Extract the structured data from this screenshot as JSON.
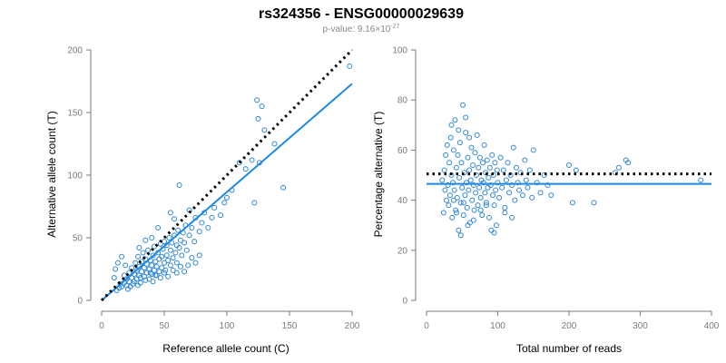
{
  "title": "rs324356 - ENSG00000029639",
  "subtitle": {
    "prefix": "p-value: 9.16×10",
    "exponent": "-27"
  },
  "colors": {
    "points": "#2f86d6",
    "fit_line": "#1e88e5",
    "reference_line": "#000000",
    "axes": "#7a7a7a"
  },
  "chart_data": [
    {
      "type": "scatter",
      "xlabel": "Reference allele count (C)",
      "ylabel": "Alternative allele count (T)",
      "xlim": [
        0,
        200
      ],
      "ylim": [
        0,
        200
      ],
      "xticks": [
        0,
        50,
        100,
        150,
        200
      ],
      "yticks": [
        0,
        50,
        100,
        150,
        200
      ],
      "grid": false,
      "reference_line": {
        "style": "dotted",
        "color": "#000000",
        "points": [
          [
            0,
            0
          ],
          [
            200,
            200
          ]
        ]
      },
      "fit_line": {
        "style": "solid",
        "color": "#1e88e5",
        "points": [
          [
            0,
            0
          ],
          [
            200,
            173
          ]
        ]
      },
      "points": [
        [
          12,
          8
        ],
        [
          14,
          10
        ],
        [
          15,
          13
        ],
        [
          16,
          11
        ],
        [
          18,
          14
        ],
        [
          18,
          20
        ],
        [
          20,
          12
        ],
        [
          20,
          17
        ],
        [
          22,
          15
        ],
        [
          22,
          22
        ],
        [
          24,
          18
        ],
        [
          24,
          26
        ],
        [
          25,
          13
        ],
        [
          26,
          21
        ],
        [
          27,
          30
        ],
        [
          28,
          17
        ],
        [
          28,
          24
        ],
        [
          29,
          35
        ],
        [
          30,
          20
        ],
        [
          30,
          27
        ],
        [
          31,
          14
        ],
        [
          32,
          23
        ],
        [
          32,
          31
        ],
        [
          33,
          38
        ],
        [
          34,
          19
        ],
        [
          34,
          26
        ],
        [
          35,
          33
        ],
        [
          36,
          22
        ],
        [
          36,
          29
        ],
        [
          37,
          40
        ],
        [
          38,
          17
        ],
        [
          38,
          25
        ],
        [
          39,
          32
        ],
        [
          40,
          21
        ],
        [
          40,
          28
        ],
        [
          41,
          36
        ],
        [
          42,
          24
        ],
        [
          42,
          43
        ],
        [
          43,
          31
        ],
        [
          44,
          20
        ],
        [
          44,
          27
        ],
        [
          45,
          38
        ],
        [
          46,
          23
        ],
        [
          46,
          33
        ],
        [
          47,
          45
        ],
        [
          48,
          26
        ],
        [
          48,
          35
        ],
        [
          49,
          41
        ],
        [
          50,
          30
        ],
        [
          50,
          47
        ],
        [
          51,
          24
        ],
        [
          52,
          36
        ],
        [
          52,
          44
        ],
        [
          53,
          32
        ],
        [
          54,
          50
        ],
        [
          55,
          28
        ],
        [
          55,
          40
        ],
        [
          56,
          46
        ],
        [
          57,
          34
        ],
        [
          58,
          52
        ],
        [
          59,
          38
        ],
        [
          60,
          44
        ],
        [
          60,
          30
        ],
        [
          61,
          56
        ],
        [
          62,
          42
        ],
        [
          63,
          48
        ],
        [
          64,
          36
        ],
        [
          65,
          54
        ],
        [
          66,
          46
        ],
        [
          67,
          60
        ],
        [
          68,
          40
        ],
        [
          70,
          52
        ],
        [
          72,
          58
        ],
        [
          74,
          47
        ],
        [
          75,
          66
        ],
        [
          78,
          55
        ],
        [
          80,
          62
        ],
        [
          82,
          70
        ],
        [
          85,
          58
        ],
        [
          88,
          66
        ],
        [
          90,
          74
        ],
        [
          95,
          68
        ],
        [
          98,
          78
        ],
        [
          100,
          82
        ],
        [
          104,
          88
        ],
        [
          110,
          110
        ],
        [
          115,
          105
        ],
        [
          120,
          112
        ],
        [
          122,
          78
        ],
        [
          124,
          160
        ],
        [
          125,
          145
        ],
        [
          126,
          110
        ],
        [
          128,
          155
        ],
        [
          130,
          136
        ],
        [
          138,
          125
        ],
        [
          145,
          90
        ],
        [
          198,
          187
        ],
        [
          10,
          18
        ],
        [
          11,
          25
        ],
        [
          13,
          30
        ],
        [
          16,
          35
        ],
        [
          19,
          28
        ],
        [
          21,
          9
        ],
        [
          23,
          11
        ],
        [
          26,
          15
        ],
        [
          29,
          12
        ],
        [
          31,
          18
        ],
        [
          35,
          16
        ],
        [
          39,
          22
        ],
        [
          41,
          15
        ],
        [
          43,
          20
        ],
        [
          47,
          18
        ],
        [
          50,
          22
        ],
        [
          53,
          19
        ],
        [
          57,
          24
        ],
        [
          60,
          22
        ],
        [
          63,
          27
        ],
        [
          66,
          23
        ],
        [
          69,
          28
        ],
        [
          72,
          34
        ],
        [
          75,
          30
        ],
        [
          78,
          36
        ],
        [
          62,
          92
        ],
        [
          58,
          65
        ],
        [
          55,
          70
        ],
        [
          70,
          72
        ],
        [
          45,
          58
        ],
        [
          40,
          50
        ],
        [
          35,
          48
        ],
        [
          30,
          42
        ]
      ]
    },
    {
      "type": "scatter",
      "xlabel": "Total number of reads",
      "ylabel": "Percentage alternative (T)",
      "xlim": [
        0,
        400
      ],
      "ylim": [
        0,
        100
      ],
      "xticks": [
        0,
        100,
        200,
        300,
        400
      ],
      "yticks": [
        0,
        20,
        40,
        60,
        80,
        100
      ],
      "grid": false,
      "reference_line": {
        "style": "dotted",
        "color": "#000000",
        "y": 50.5
      },
      "fit_line": {
        "style": "solid",
        "color": "#1e88e5",
        "y": 46.5
      },
      "points": [
        [
          22,
          48
        ],
        [
          24,
          35
        ],
        [
          25,
          52
        ],
        [
          26,
          44
        ],
        [
          27,
          58
        ],
        [
          28,
          40
        ],
        [
          29,
          62
        ],
        [
          30,
          46
        ],
        [
          31,
          38
        ],
        [
          32,
          55
        ],
        [
          33,
          42
        ],
        [
          34,
          65
        ],
        [
          35,
          50
        ],
        [
          36,
          33
        ],
        [
          37,
          47
        ],
        [
          38,
          60
        ],
        [
          39,
          44
        ],
        [
          40,
          72
        ],
        [
          41,
          36
        ],
        [
          42,
          53
        ],
        [
          43,
          41
        ],
        [
          44,
          58
        ],
        [
          45,
          28
        ],
        [
          46,
          49
        ],
        [
          47,
          63
        ],
        [
          48,
          39
        ],
        [
          49,
          55
        ],
        [
          50,
          45
        ],
        [
          51,
          78
        ],
        [
          52,
          34
        ],
        [
          53,
          51
        ],
        [
          54,
          42
        ],
        [
          55,
          67
        ],
        [
          56,
          47
        ],
        [
          57,
          37
        ],
        [
          58,
          57
        ],
        [
          59,
          44
        ],
        [
          60,
          52
        ],
        [
          61,
          31
        ],
        [
          62,
          48
        ],
        [
          63,
          61
        ],
        [
          64,
          40
        ],
        [
          65,
          54
        ],
        [
          66,
          46
        ],
        [
          67,
          36
        ],
        [
          68,
          59
        ],
        [
          69,
          43
        ],
        [
          70,
          50
        ],
        [
          71,
          66
        ],
        [
          72,
          38
        ],
        [
          73,
          53
        ],
        [
          74,
          45
        ],
        [
          75,
          57
        ],
        [
          76,
          41
        ],
        [
          77,
          48
        ],
        [
          78,
          34
        ],
        [
          79,
          55
        ],
        [
          80,
          47
        ],
        [
          81,
          62
        ],
        [
          82,
          43
        ],
        [
          83,
          51
        ],
        [
          84,
          39
        ],
        [
          85,
          56
        ],
        [
          86,
          45
        ],
        [
          87,
          49
        ],
        [
          88,
          33
        ],
        [
          89,
          53
        ],
        [
          90,
          46
        ],
        [
          91,
          28
        ],
        [
          92,
          58
        ],
        [
          93,
          42
        ],
        [
          94,
          50
        ],
        [
          95,
          38
        ],
        [
          96,
          55
        ],
        [
          97,
          44
        ],
        [
          98,
          30
        ],
        [
          99,
          52
        ],
        [
          100,
          47
        ],
        [
          102,
          41
        ],
        [
          104,
          57
        ],
        [
          106,
          45
        ],
        [
          108,
          52
        ],
        [
          110,
          37
        ],
        [
          112,
          48
        ],
        [
          114,
          55
        ],
        [
          116,
          43
        ],
        [
          118,
          50
        ],
        [
          120,
          46
        ],
        [
          122,
          61
        ],
        [
          124,
          40
        ],
        [
          126,
          53
        ],
        [
          128,
          47
        ],
        [
          130,
          44
        ],
        [
          132,
          51
        ],
        [
          135,
          42
        ],
        [
          138,
          56
        ],
        [
          140,
          48
        ],
        [
          142,
          45
        ],
        [
          145,
          52
        ],
        [
          148,
          41
        ],
        [
          150,
          60
        ],
        [
          155,
          47
        ],
        [
          160,
          43
        ],
        [
          165,
          50
        ],
        [
          170,
          46
        ],
        [
          175,
          42
        ],
        [
          200,
          54
        ],
        [
          205,
          39
        ],
        [
          210,
          52
        ],
        [
          235,
          39
        ],
        [
          265,
          51
        ],
        [
          270,
          53
        ],
        [
          280,
          56
        ],
        [
          283,
          55
        ],
        [
          385,
          48
        ],
        [
          35,
          70
        ],
        [
          45,
          68
        ],
        [
          55,
          73
        ],
        [
          60,
          65
        ],
        [
          48,
          26
        ],
        [
          58,
          30
        ],
        [
          95,
          27
        ],
        [
          120,
          33
        ],
        [
          38,
          40
        ],
        [
          42,
          35
        ],
        [
          52,
          39
        ],
        [
          66,
          32
        ],
        [
          76,
          36
        ],
        [
          84,
          38
        ],
        [
          110,
          35
        ]
      ]
    }
  ]
}
